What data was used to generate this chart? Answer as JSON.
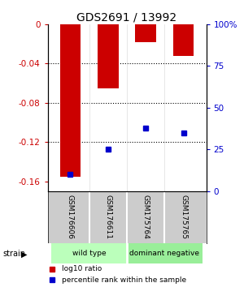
{
  "title": "GDS2691 / 13992",
  "categories": [
    "GSM176606",
    "GSM176611",
    "GSM175764",
    "GSM175765"
  ],
  "log10_ratio": [
    -0.155,
    -0.065,
    -0.018,
    -0.032
  ],
  "percentile_rank": [
    10.0,
    25.0,
    38.0,
    35.0
  ],
  "ylim_left": [
    -0.17,
    0.0
  ],
  "ylim_right": [
    0,
    100
  ],
  "yticks_left": [
    0,
    -0.04,
    -0.08,
    -0.12,
    -0.16
  ],
  "yticks_right": [
    0,
    25,
    50,
    75,
    100
  ],
  "bar_color": "#cc0000",
  "marker_color": "#0000cc",
  "bar_width": 0.55,
  "groups": [
    {
      "label": "wild type",
      "indices": [
        0,
        1
      ],
      "color": "#bbffbb"
    },
    {
      "label": "dominant negative",
      "indices": [
        2,
        3
      ],
      "color": "#99ee99"
    }
  ],
  "strain_label": "strain",
  "legend_red": "log10 ratio",
  "legend_blue": "percentile rank within the sample",
  "bg_color": "#ffffff",
  "plot_bg": "#ffffff",
  "left_label_color": "#cc0000",
  "right_label_color": "#0000cc",
  "gsm_bg_color": "#cccccc"
}
